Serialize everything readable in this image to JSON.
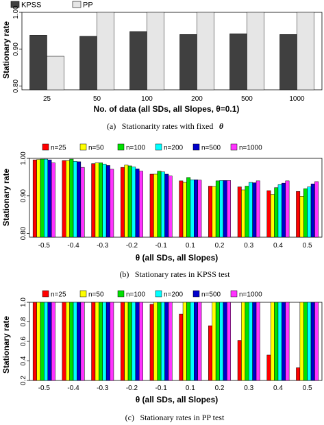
{
  "chart_data": [
    {
      "type": "bar",
      "xlabel": "No. of data (all SDs, all Slopes, θ=0.1)",
      "ylabel": "Stationary rate",
      "caption_label": "(a)",
      "caption_text": "Stationarity rates with fixed",
      "caption_symbol": "θ",
      "categories": [
        "25",
        "50",
        "100",
        "200",
        "500",
        "1000"
      ],
      "ylim": [
        0.79,
        1.0
      ],
      "yticks": [
        "0.80",
        "0.90",
        "1.00"
      ],
      "ytick_values": [
        0.8,
        0.9,
        1.0
      ],
      "legend_position": "top-left",
      "series": [
        {
          "name": "KPSS",
          "color": "#404040",
          "values": [
            0.938,
            0.935,
            0.948,
            0.94,
            0.942,
            0.94
          ]
        },
        {
          "name": "PP",
          "color": "#e6e6e6",
          "values": [
            0.881,
            1.0,
            1.0,
            1.0,
            1.0,
            1.0
          ]
        }
      ]
    },
    {
      "type": "bar",
      "xlabel": "θ (all SDs, all Slopes)",
      "ylabel": "Stationary rate",
      "caption_label": "(b)",
      "caption_text": "Stationary rates in KPSS test",
      "categories": [
        "-0.5",
        "-0.4",
        "-0.3",
        "-0.2",
        "-0.1",
        "0.1",
        "0.2",
        "0.3",
        "0.4",
        "0.5"
      ],
      "ylim": [
        0.79,
        1.0
      ],
      "yticks": [
        "0.80",
        "0.90",
        "1.00"
      ],
      "ytick_values": [
        0.8,
        0.9,
        1.0
      ],
      "legend_position": "top",
      "series": [
        {
          "name": "n=25",
          "color": "#ff0000",
          "values": [
            0.996,
            0.994,
            0.986,
            0.976,
            0.958,
            0.94,
            0.926,
            0.924,
            0.914,
            0.912
          ]
        },
        {
          "name": "n=50",
          "color": "#ffff00",
          "values": [
            0.997,
            0.994,
            0.988,
            0.982,
            0.958,
            0.936,
            0.925,
            0.916,
            0.904,
            0.899
          ]
        },
        {
          "name": "n=100",
          "color": "#00e000",
          "values": [
            0.998,
            0.998,
            0.988,
            0.98,
            0.966,
            0.949,
            0.94,
            0.926,
            0.922,
            0.919
          ]
        },
        {
          "name": "n=200",
          "color": "#00ffff",
          "values": [
            0.998,
            0.992,
            0.985,
            0.977,
            0.964,
            0.943,
            0.941,
            0.936,
            0.93,
            0.924
          ]
        },
        {
          "name": "n=500",
          "color": "#0000cc",
          "values": [
            0.996,
            0.991,
            0.981,
            0.972,
            0.958,
            0.943,
            0.941,
            0.935,
            0.934,
            0.932
          ]
        },
        {
          "name": "n=1000",
          "color": "#ff33ff",
          "values": [
            0.988,
            0.976,
            0.971,
            0.966,
            0.953,
            0.942,
            0.941,
            0.94,
            0.94,
            0.938
          ]
        }
      ]
    },
    {
      "type": "bar",
      "xlabel": "θ (all SDs, all Slopes)",
      "ylabel": "Stationary rate",
      "caption_label": "(c)",
      "caption_text": "Stationary rates in PP test",
      "categories": [
        "-0.5",
        "-0.4",
        "-0.3",
        "-0.2",
        "-0.1",
        "0.1",
        "0.2",
        "0.3",
        "0.4",
        "0.5"
      ],
      "ylim": [
        0.2,
        1.0
      ],
      "yticks": [
        "0.2",
        "0.4",
        "0.6",
        "0.8",
        "1.0"
      ],
      "ytick_values": [
        0.2,
        0.4,
        0.6,
        0.8,
        1.0
      ],
      "legend_position": "top",
      "series": [
        {
          "name": "n=25",
          "color": "#ff0000",
          "values": [
            1.0,
            1.0,
            1.0,
            1.0,
            0.98,
            0.88,
            0.76,
            0.61,
            0.46,
            0.33
          ]
        },
        {
          "name": "n=50",
          "color": "#ffff00",
          "values": [
            1.0,
            1.0,
            1.0,
            1.0,
            1.0,
            1.0,
            1.0,
            1.0,
            1.0,
            1.0
          ]
        },
        {
          "name": "n=100",
          "color": "#00e000",
          "values": [
            1.0,
            1.0,
            1.0,
            1.0,
            1.0,
            1.0,
            1.0,
            1.0,
            1.0,
            1.0
          ]
        },
        {
          "name": "n=200",
          "color": "#00ffff",
          "values": [
            1.0,
            1.0,
            1.0,
            1.0,
            1.0,
            1.0,
            1.0,
            1.0,
            1.0,
            1.0
          ]
        },
        {
          "name": "n=500",
          "color": "#0000cc",
          "values": [
            1.0,
            1.0,
            1.0,
            1.0,
            1.0,
            1.0,
            1.0,
            1.0,
            1.0,
            1.0
          ]
        },
        {
          "name": "n=1000",
          "color": "#ff33ff",
          "values": [
            1.0,
            1.0,
            1.0,
            1.0,
            1.0,
            1.0,
            1.0,
            1.0,
            1.0,
            1.0
          ]
        }
      ]
    }
  ]
}
